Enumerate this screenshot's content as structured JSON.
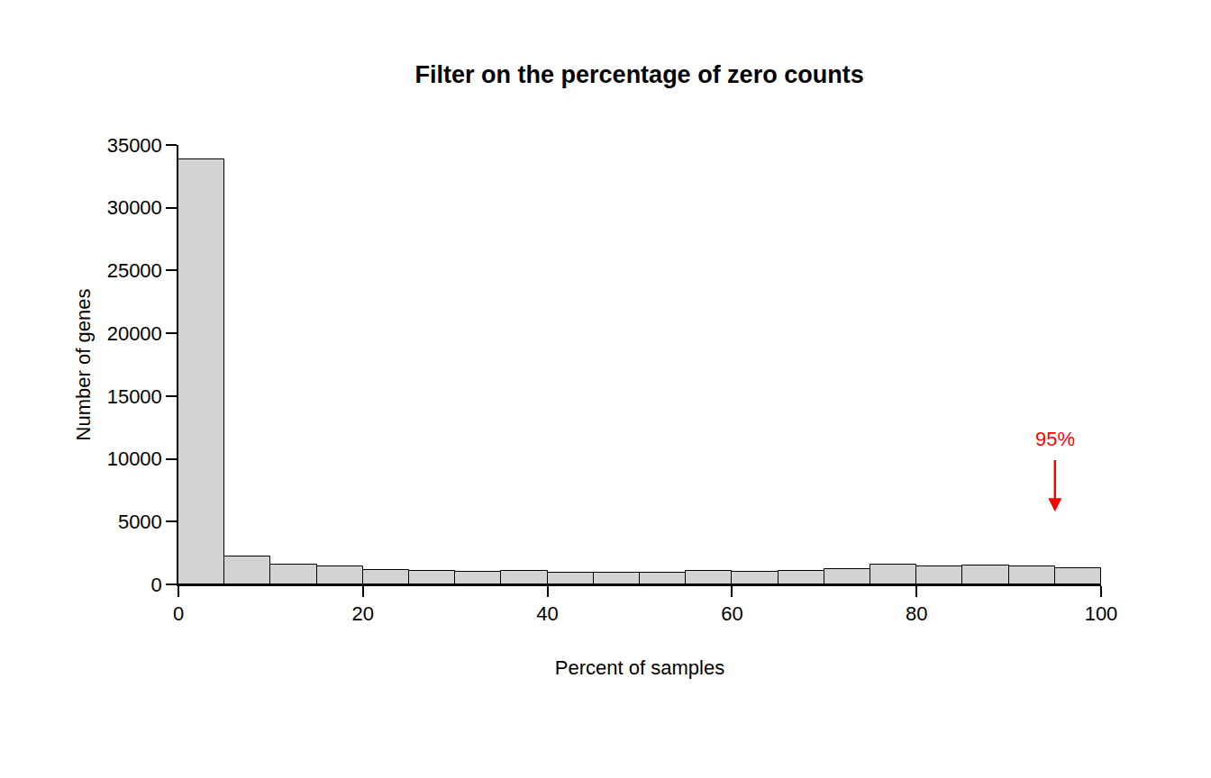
{
  "chart_data": {
    "type": "histogram",
    "title": "Filter on the percentage of zero counts",
    "x_label": "Percent of samples",
    "y_label": "Number of genes",
    "bins": [
      0,
      5,
      10,
      15,
      20,
      25,
      30,
      35,
      40,
      45,
      50,
      55,
      60,
      65,
      70,
      75,
      80,
      85,
      90,
      95,
      100
    ],
    "values": [
      33850,
      2250,
      1600,
      1450,
      1150,
      1050,
      1000,
      1050,
      900,
      900,
      950,
      1050,
      1000,
      1100,
      1200,
      1600,
      1450,
      1500,
      1400,
      1300
    ],
    "color": "#d3d3d3",
    "xlim": [
      0,
      100
    ],
    "xticks": [
      0,
      20,
      40,
      60,
      80,
      100
    ],
    "ylim": [
      0,
      35000
    ],
    "yticks": [
      0,
      5000,
      10000,
      15000,
      20000,
      25000,
      30000,
      35000
    ],
    "grid": false,
    "annotations": [
      {
        "text": "95%",
        "x": 95,
        "y": 10000,
        "arrow_to": 5800,
        "color": "#ff0000"
      }
    ]
  }
}
